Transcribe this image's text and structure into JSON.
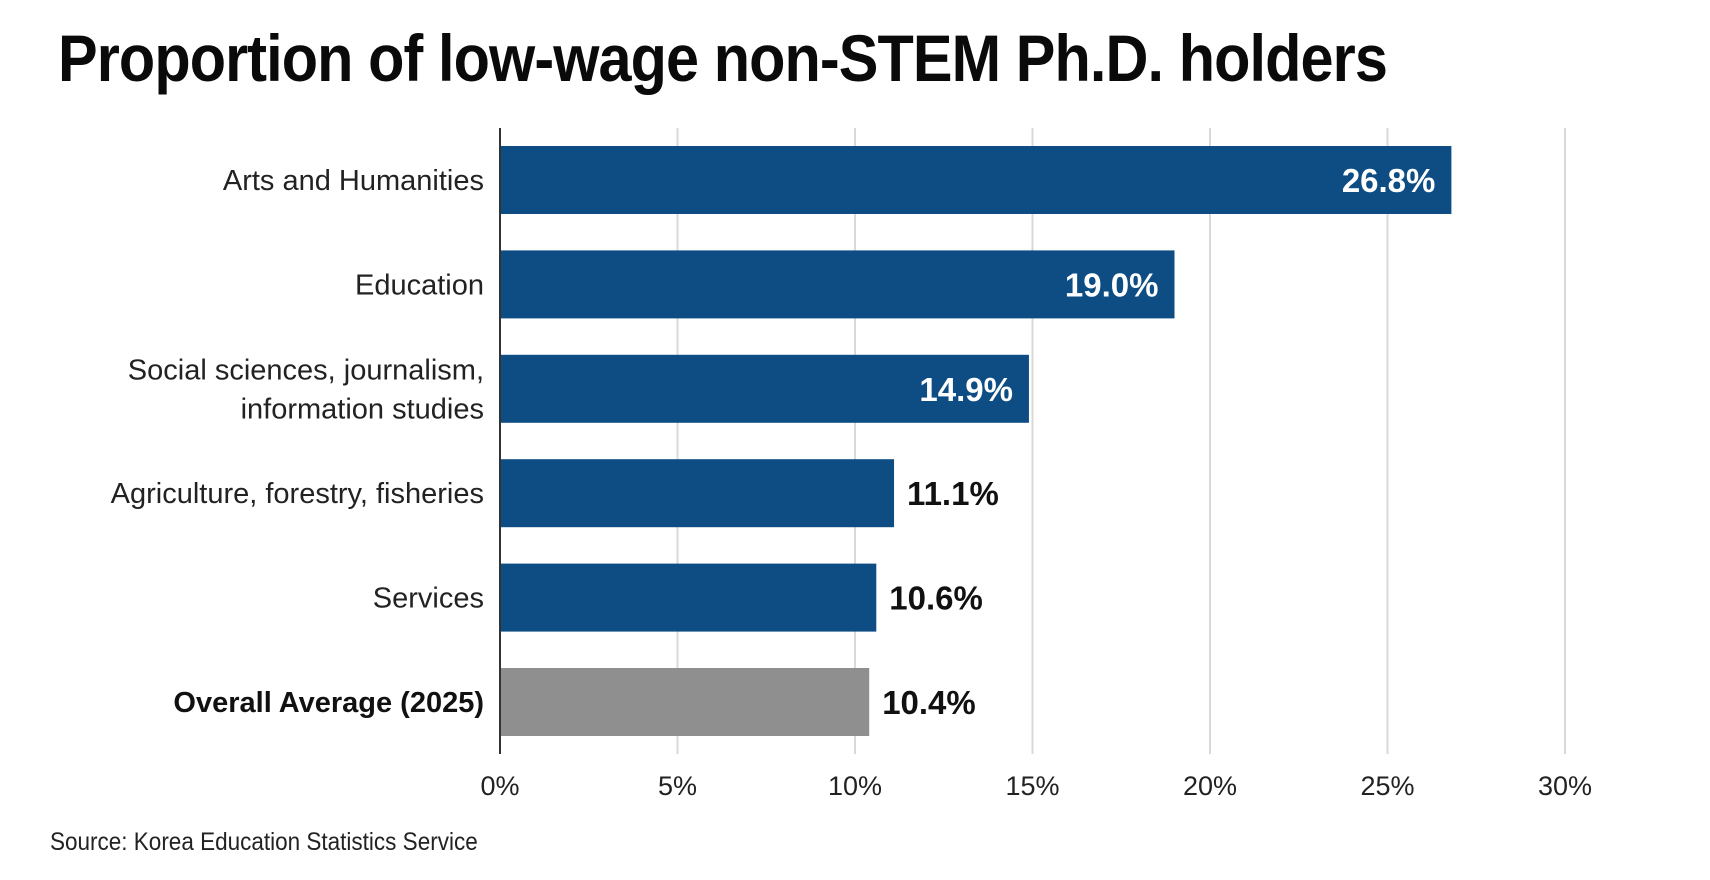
{
  "chart_data": {
    "type": "bar",
    "orientation": "horizontal",
    "title": "Proportion of low-wage non-STEM Ph.D. holders",
    "xlabel": "",
    "ylabel": "",
    "categories": [
      "Arts and Humanities",
      "Education",
      "Social sciences, journalism, information studies",
      "Agriculture, forestry, fisheries",
      "Services",
      "Overall Average (2025)"
    ],
    "category_label_lines": [
      [
        "Arts and Humanities"
      ],
      [
        "Education"
      ],
      [
        "Social sciences, journalism,",
        "information studies"
      ],
      [
        "Agriculture, forestry, fisheries"
      ],
      [
        "Services"
      ],
      [
        "Overall Average (2025)"
      ]
    ],
    "values": [
      26.8,
      19.0,
      14.9,
      11.1,
      10.6,
      10.4
    ],
    "value_labels": [
      "26.8%",
      "19.0%",
      "14.9%",
      "11.1%",
      "10.6%",
      "10.4%"
    ],
    "label_position": [
      "inside",
      "inside",
      "inside",
      "outside",
      "outside",
      "outside"
    ],
    "highlight": [
      false,
      false,
      false,
      false,
      false,
      true
    ],
    "colors": {
      "bar": "#0e4d84",
      "highlight_bar": "#8f8f8f",
      "inside_label": "#ffffff",
      "outside_label": "#111111",
      "gridline": "#d9d9d9",
      "axis": "#333333"
    },
    "xlim": [
      0,
      30
    ],
    "xticks": [
      0,
      5,
      10,
      15,
      20,
      25,
      30
    ],
    "xtick_labels": [
      "0%",
      "5%",
      "10%",
      "15%",
      "20%",
      "25%",
      "30%"
    ],
    "grid": true,
    "legend": null
  },
  "source": "Source: Korea Education Statistics Service"
}
